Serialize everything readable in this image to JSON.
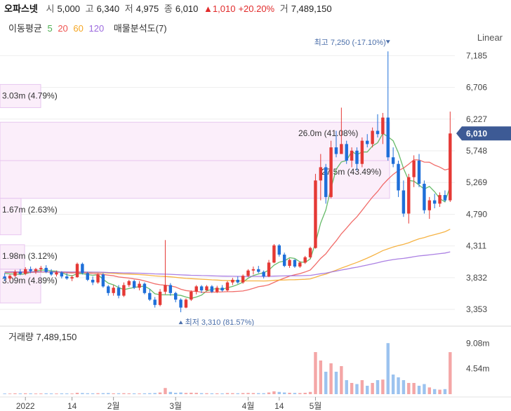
{
  "header": {
    "name": "오파스넷",
    "open_label": "시",
    "open": "5,000",
    "high_label": "고",
    "high": "6,340",
    "low_label": "저",
    "low": "4,975",
    "close_label": "종",
    "close": "6,010",
    "change": "▲1,010",
    "change_pct": "+20.20%",
    "volume_label": "거",
    "volume": "7,489,150"
  },
  "ma_legend": {
    "title": "이동평균",
    "periods": [
      {
        "label": "5",
        "color": "#4caf50"
      },
      {
        "label": "20",
        "color": "#ef5350"
      },
      {
        "label": "60",
        "color": "#f5a623"
      },
      {
        "label": "120",
        "color": "#9c6ade"
      }
    ],
    "volume_profile": "매물분석도(7)"
  },
  "scale_mode": "Linear",
  "price_axis": {
    "ticks": [
      "7,185",
      "6,706",
      "6,227",
      "5,748",
      "5,269",
      "4,790",
      "4,311",
      "3,832",
      "3,353"
    ],
    "current_price": "6,010"
  },
  "volume_panel": {
    "label": "거래량 7,489,150",
    "ticks": [
      "9.08m",
      "4.54m"
    ]
  },
  "x_axis": {
    "labels": [
      "2022",
      "14",
      "2월",
      "3월",
      "4월",
      "14",
      "5월"
    ]
  },
  "annotations": {
    "high": "최고 7,250 (-17.10%)",
    "low": "최저 3,310 (81.57%)"
  },
  "volume_profile_bars": [
    {
      "label": "3.03m (4.79%)",
      "price_low": 6400,
      "price_high": 6750
    },
    {
      "label": "26.0m (41.08%)",
      "price_low": 5600,
      "price_high": 6180
    },
    {
      "label": "27.5m (43.49%)",
      "price_low": 5030,
      "price_high": 5600
    },
    {
      "label": "1.67m (2.63%)",
      "price_low": 4480,
      "price_high": 5030
    },
    {
      "label": "1.98m (3.12%)",
      "price_low": 3960,
      "price_high": 4330
    },
    {
      "label": "3.09m (4.89%)",
      "price_low": 3450,
      "price_high": 3960
    }
  ],
  "chart_data": {
    "type": "candlestick",
    "y_range": [
      3153,
      7390
    ],
    "volume_range": [
      0,
      11500000
    ],
    "x_ticks": [
      {
        "label": "2022",
        "index": 4
      },
      {
        "label": "14",
        "index": 13
      },
      {
        "label": "2월",
        "index": 21
      },
      {
        "label": "3월",
        "index": 33
      },
      {
        "label": "4월",
        "index": 47
      },
      {
        "label": "14",
        "index": 53
      },
      {
        "label": "5월",
        "index": 60
      }
    ],
    "candles": [
      {
        "o": 3850,
        "h": 3900,
        "l": 3780,
        "c": 3820,
        "v": 120000
      },
      {
        "o": 3820,
        "h": 3880,
        "l": 3790,
        "c": 3860,
        "v": 110000
      },
      {
        "o": 3860,
        "h": 3950,
        "l": 3840,
        "c": 3920,
        "v": 150000
      },
      {
        "o": 3920,
        "h": 3960,
        "l": 3870,
        "c": 3890,
        "v": 130000
      },
      {
        "o": 3890,
        "h": 3990,
        "l": 3870,
        "c": 3960,
        "v": 160000
      },
      {
        "o": 3960,
        "h": 4000,
        "l": 3900,
        "c": 3930,
        "v": 140000
      },
      {
        "o": 3930,
        "h": 3980,
        "l": 3890,
        "c": 3960,
        "v": 120000
      },
      {
        "o": 3960,
        "h": 4010,
        "l": 3920,
        "c": 3980,
        "v": 130000
      },
      {
        "o": 3980,
        "h": 4020,
        "l": 3900,
        "c": 3920,
        "v": 150000
      },
      {
        "o": 3920,
        "h": 3960,
        "l": 3860,
        "c": 3880,
        "v": 130000
      },
      {
        "o": 3880,
        "h": 3940,
        "l": 3850,
        "c": 3910,
        "v": 120000
      },
      {
        "o": 3910,
        "h": 3930,
        "l": 3820,
        "c": 3850,
        "v": 140000
      },
      {
        "o": 3850,
        "h": 3900,
        "l": 3800,
        "c": 3820,
        "v": 130000
      },
      {
        "o": 3820,
        "h": 3870,
        "l": 3780,
        "c": 3840,
        "v": 120000
      },
      {
        "o": 3840,
        "h": 4060,
        "l": 3830,
        "c": 4040,
        "v": 250000
      },
      {
        "o": 4040,
        "h": 4060,
        "l": 3880,
        "c": 3900,
        "v": 200000
      },
      {
        "o": 3900,
        "h": 3920,
        "l": 3780,
        "c": 3800,
        "v": 160000
      },
      {
        "o": 3800,
        "h": 3850,
        "l": 3720,
        "c": 3760,
        "v": 150000
      },
      {
        "o": 3760,
        "h": 3900,
        "l": 3740,
        "c": 3880,
        "v": 170000
      },
      {
        "o": 3880,
        "h": 3900,
        "l": 3680,
        "c": 3700,
        "v": 180000
      },
      {
        "o": 3700,
        "h": 3720,
        "l": 3560,
        "c": 3600,
        "v": 200000
      },
      {
        "o": 3600,
        "h": 3720,
        "l": 3560,
        "c": 3680,
        "v": 150000
      },
      {
        "o": 3680,
        "h": 3720,
        "l": 3520,
        "c": 3560,
        "v": 160000
      },
      {
        "o": 3560,
        "h": 3760,
        "l": 3540,
        "c": 3720,
        "v": 170000
      },
      {
        "o": 3720,
        "h": 3800,
        "l": 3690,
        "c": 3780,
        "v": 150000
      },
      {
        "o": 3780,
        "h": 3800,
        "l": 3660,
        "c": 3680,
        "v": 140000
      },
      {
        "o": 3680,
        "h": 3780,
        "l": 3640,
        "c": 3740,
        "v": 130000
      },
      {
        "o": 3740,
        "h": 3760,
        "l": 3580,
        "c": 3600,
        "v": 150000
      },
      {
        "o": 3600,
        "h": 3660,
        "l": 3480,
        "c": 3500,
        "v": 170000
      },
      {
        "o": 3500,
        "h": 3540,
        "l": 3380,
        "c": 3420,
        "v": 200000
      },
      {
        "o": 3420,
        "h": 3660,
        "l": 3400,
        "c": 3620,
        "v": 300000
      },
      {
        "o": 3620,
        "h": 4400,
        "l": 3580,
        "c": 3720,
        "v": 1100000
      },
      {
        "o": 3720,
        "h": 3750,
        "l": 3560,
        "c": 3600,
        "v": 400000
      },
      {
        "o": 3600,
        "h": 3620,
        "l": 3460,
        "c": 3500,
        "v": 250000
      },
      {
        "o": 3500,
        "h": 3520,
        "l": 3310,
        "c": 3380,
        "v": 300000
      },
      {
        "o": 3380,
        "h": 3520,
        "l": 3370,
        "c": 3500,
        "v": 220000
      },
      {
        "o": 3500,
        "h": 3640,
        "l": 3480,
        "c": 3620,
        "v": 260000
      },
      {
        "o": 3620,
        "h": 3720,
        "l": 3580,
        "c": 3700,
        "v": 240000
      },
      {
        "o": 3700,
        "h": 3720,
        "l": 3600,
        "c": 3640,
        "v": 180000
      },
      {
        "o": 3640,
        "h": 3720,
        "l": 3630,
        "c": 3700,
        "v": 170000
      },
      {
        "o": 3700,
        "h": 3720,
        "l": 3600,
        "c": 3620,
        "v": 150000
      },
      {
        "o": 3620,
        "h": 3710,
        "l": 3600,
        "c": 3680,
        "v": 150000
      },
      {
        "o": 3680,
        "h": 3720,
        "l": 3620,
        "c": 3640,
        "v": 140000
      },
      {
        "o": 3640,
        "h": 3780,
        "l": 3620,
        "c": 3760,
        "v": 200000
      },
      {
        "o": 3760,
        "h": 3830,
        "l": 3720,
        "c": 3800,
        "v": 180000
      },
      {
        "o": 3800,
        "h": 3850,
        "l": 3740,
        "c": 3760,
        "v": 160000
      },
      {
        "o": 3760,
        "h": 3880,
        "l": 3740,
        "c": 3860,
        "v": 200000
      },
      {
        "o": 3860,
        "h": 3960,
        "l": 3840,
        "c": 3940,
        "v": 220000
      },
      {
        "o": 3940,
        "h": 4000,
        "l": 3880,
        "c": 3960,
        "v": 200000
      },
      {
        "o": 3960,
        "h": 4010,
        "l": 3900,
        "c": 3920,
        "v": 180000
      },
      {
        "o": 3920,
        "h": 3940,
        "l": 3820,
        "c": 3850,
        "v": 170000
      },
      {
        "o": 3850,
        "h": 4100,
        "l": 3840,
        "c": 4060,
        "v": 300000
      },
      {
        "o": 4060,
        "h": 4340,
        "l": 4050,
        "c": 4320,
        "v": 500000
      },
      {
        "o": 4320,
        "h": 4340,
        "l": 4150,
        "c": 4180,
        "v": 400000
      },
      {
        "o": 4180,
        "h": 4210,
        "l": 3990,
        "c": 4010,
        "v": 300000
      },
      {
        "o": 4010,
        "h": 4120,
        "l": 3980,
        "c": 4100,
        "v": 250000
      },
      {
        "o": 4100,
        "h": 4110,
        "l": 3980,
        "c": 4000,
        "v": 220000
      },
      {
        "o": 4000,
        "h": 4080,
        "l": 3980,
        "c": 4060,
        "v": 200000
      },
      {
        "o": 4060,
        "h": 4160,
        "l": 4040,
        "c": 4140,
        "v": 250000
      },
      {
        "o": 4140,
        "h": 4300,
        "l": 4120,
        "c": 4280,
        "v": 400000
      },
      {
        "o": 4280,
        "h": 5400,
        "l": 4270,
        "c": 5300,
        "v": 7500000
      },
      {
        "o": 5300,
        "h": 5700,
        "l": 5000,
        "c": 5500,
        "v": 6000000
      },
      {
        "o": 5500,
        "h": 5550,
        "l": 4950,
        "c": 5050,
        "v": 4000000
      },
      {
        "o": 5050,
        "h": 5900,
        "l": 5030,
        "c": 5800,
        "v": 5500000
      },
      {
        "o": 5800,
        "h": 6050,
        "l": 5650,
        "c": 5700,
        "v": 4000000
      },
      {
        "o": 5700,
        "h": 6400,
        "l": 5700,
        "c": 5850,
        "v": 5000000
      },
      {
        "o": 5850,
        "h": 5900,
        "l": 5550,
        "c": 5600,
        "v": 2500000
      },
      {
        "o": 5600,
        "h": 5800,
        "l": 5500,
        "c": 5750,
        "v": 2000000
      },
      {
        "o": 5750,
        "h": 5800,
        "l": 5450,
        "c": 5550,
        "v": 1800000
      },
      {
        "o": 5550,
        "h": 5950,
        "l": 5500,
        "c": 5900,
        "v": 2500000
      },
      {
        "o": 5900,
        "h": 6000,
        "l": 5800,
        "c": 5850,
        "v": 1500000
      },
      {
        "o": 5850,
        "h": 6100,
        "l": 5800,
        "c": 6050,
        "v": 2000000
      },
      {
        "o": 6050,
        "h": 6300,
        "l": 5950,
        "c": 6000,
        "v": 2500000
      },
      {
        "o": 6000,
        "h": 6320,
        "l": 5850,
        "c": 6250,
        "v": 2600000
      },
      {
        "o": 6250,
        "h": 7250,
        "l": 5600,
        "c": 5650,
        "v": 9100000
      },
      {
        "o": 5650,
        "h": 5800,
        "l": 5500,
        "c": 5550,
        "v": 3500000
      },
      {
        "o": 5550,
        "h": 5600,
        "l": 5050,
        "c": 5150,
        "v": 3000000
      },
      {
        "o": 5150,
        "h": 5300,
        "l": 4750,
        "c": 4800,
        "v": 2500000
      },
      {
        "o": 4800,
        "h": 5400,
        "l": 4650,
        "c": 5350,
        "v": 2000000
      },
      {
        "o": 5350,
        "h": 5680,
        "l": 5200,
        "c": 5600,
        "v": 2000000
      },
      {
        "o": 5600,
        "h": 5700,
        "l": 5200,
        "c": 5250,
        "v": 1500000
      },
      {
        "o": 5250,
        "h": 5300,
        "l": 4800,
        "c": 4850,
        "v": 1800000
      },
      {
        "o": 4850,
        "h": 5050,
        "l": 4720,
        "c": 5000,
        "v": 1200000
      },
      {
        "o": 5000,
        "h": 5100,
        "l": 4880,
        "c": 4950,
        "v": 900000
      },
      {
        "o": 4950,
        "h": 5120,
        "l": 4900,
        "c": 5080,
        "v": 800000
      },
      {
        "o": 5080,
        "h": 5150,
        "l": 4980,
        "c": 5000,
        "v": 900000
      },
      {
        "o": 5000,
        "h": 6340,
        "l": 4975,
        "c": 6010,
        "v": 7489150
      }
    ]
  }
}
